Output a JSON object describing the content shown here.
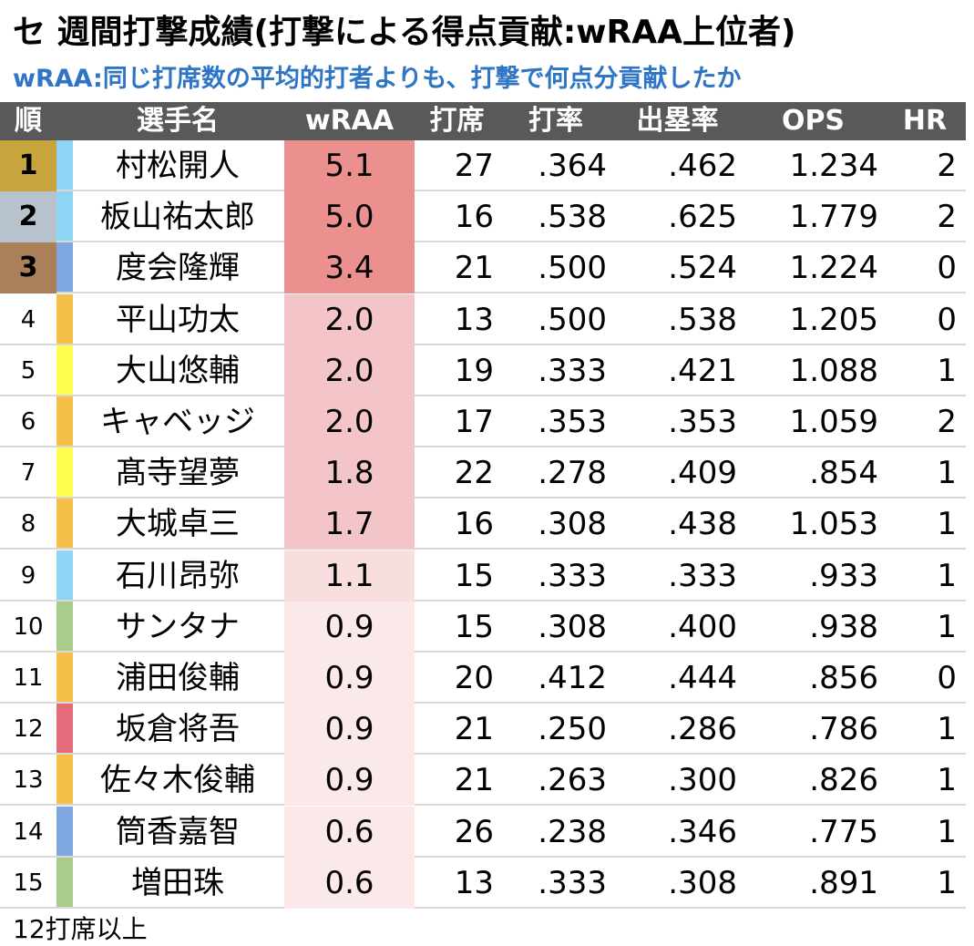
{
  "header": {
    "title": "セ 週間打撃成績(打撃による得点貢献:wRAA上位者)",
    "subtitle": "wRAA:同じ打席数の平均的打者よりも、打撃で何点分貢献したか"
  },
  "table": {
    "columns": [
      "順",
      "選手名",
      "wRAA",
      "打席",
      "打率",
      "出塁率",
      "OPS",
      "HR"
    ],
    "rows": [
      [
        "1",
        "村松開人",
        "5.1",
        "27",
        ".364",
        ".462",
        "1.234",
        "2"
      ],
      [
        "2",
        "板山祐太郎",
        "5.0",
        "16",
        ".538",
        ".625",
        "1.779",
        "2"
      ],
      [
        "3",
        "度会隆輝",
        "3.4",
        "21",
        ".500",
        ".524",
        "1.224",
        "0"
      ],
      [
        "4",
        "平山功太",
        "2.0",
        "13",
        ".500",
        ".538",
        "1.205",
        "0"
      ],
      [
        "5",
        "大山悠輔",
        "2.0",
        "19",
        ".333",
        ".421",
        "1.088",
        "1"
      ],
      [
        "6",
        "キャベッジ",
        "2.0",
        "17",
        ".353",
        ".353",
        "1.059",
        "2"
      ],
      [
        "7",
        "髙寺望夢",
        "1.8",
        "22",
        ".278",
        ".409",
        ".854",
        "1"
      ],
      [
        "8",
        "大城卓三",
        "1.7",
        "16",
        ".308",
        ".438",
        "1.053",
        "1"
      ],
      [
        "9",
        "石川昂弥",
        "1.1",
        "15",
        ".333",
        ".333",
        ".933",
        "1"
      ],
      [
        "10",
        "サンタナ",
        "0.9",
        "15",
        ".308",
        ".400",
        ".938",
        "1"
      ],
      [
        "11",
        "浦田俊輔",
        "0.9",
        "20",
        ".412",
        ".444",
        ".856",
        "0"
      ],
      [
        "12",
        "坂倉将吾",
        "0.9",
        "21",
        ".250",
        ".286",
        ".786",
        "1"
      ],
      [
        "13",
        "佐々木俊輔",
        "0.9",
        "21",
        ".263",
        ".300",
        ".826",
        "1"
      ],
      [
        "14",
        "筒香嘉智",
        "0.6",
        "26",
        ".238",
        ".346",
        ".775",
        "1"
      ],
      [
        "15",
        "増田珠",
        "0.6",
        "13",
        ".333",
        ".308",
        ".891",
        "1"
      ]
    ],
    "team_colors": [
      "#8fd4f4",
      "#8fd4f4",
      "#7fa8e0",
      "#f5c04a",
      "#fffd50",
      "#f5c04a",
      "#fffd50",
      "#f5c04a",
      "#8fd4f4",
      "#a9cc8c",
      "#f5c04a",
      "#e56b7a",
      "#f5c04a",
      "#7fa8e0",
      "#a9cc8c"
    ],
    "rank_colors": [
      "#c8a53c",
      "#b8c2cc",
      "#a9805a"
    ],
    "wraa_colors": [
      "#ec8f8f",
      "#ec8f8f",
      "#ec8f8f",
      "#f3c5c8",
      "#f3c5c8",
      "#f3c5c8",
      "#f3c5c8",
      "#f3c5c8",
      "#f8dede",
      "#fbe9e9",
      "#fbe9e9",
      "#fbe9e9",
      "#fbe9e9",
      "#fbe9e9",
      "#fbe9e9"
    ]
  },
  "footnote": "12打席以上"
}
